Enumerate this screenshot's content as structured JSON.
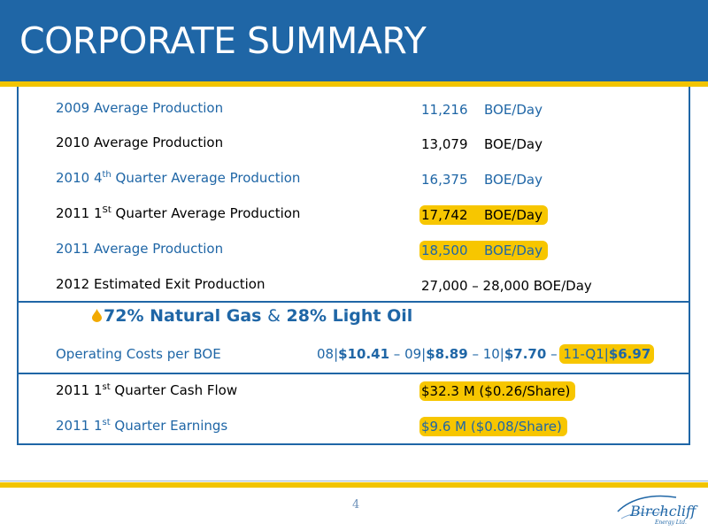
{
  "header": {
    "title": "CORPORATE SUMMARY"
  },
  "rows": [
    {
      "label": "2009 Average Production",
      "value": "11,216",
      "unit": "BOE/Day"
    },
    {
      "label": "2010 Average Production",
      "value": "13,079",
      "unit": "BOE/Day"
    },
    {
      "label_pre": "2010 4",
      "label_sup": "th",
      "label_post": " Quarter Average Production",
      "value": "16,375",
      "unit": "BOE/Day"
    },
    {
      "label_pre": "2011 1",
      "label_sup": "St",
      "label_post": " Quarter Average Production",
      "value": "17,742",
      "unit": "BOE/Day"
    },
    {
      "label": "2011 Average Production",
      "value": "18,500",
      "unit": "BOE/Day"
    },
    {
      "label": "2012 Estimated Exit Production",
      "value": "27,000 – 28,000 BOE/Day"
    }
  ],
  "mix": {
    "gas": "72% Natural Gas",
    "amp": "&",
    "oil": "28% Light Oil"
  },
  "op_costs": {
    "label": "Operating Costs per BOE",
    "p1": "08|",
    "v1": "$10.41",
    "s1": " – ",
    "p2": "09|",
    "v2": "$8.89",
    "s2": " – ",
    "p3": "10|",
    "v3": "$7.70",
    "s3": " – ",
    "p4": "11-Q1|",
    "v4": "$6.97"
  },
  "cash": {
    "cf_pre": "2011 1",
    "cf_sup": "st",
    "cf_post": " Quarter Cash Flow",
    "cf_value": "$32.3 M ($0.26/Share)",
    "er_pre": "2011 1",
    "er_sup": "st",
    "er_post": " Quarter Earnings",
    "er_value": "$9.6 M ($0.08/Share)"
  },
  "footer": {
    "page": "4",
    "logo_text": "Birchcliff",
    "logo_sub": "Energy Ltd."
  },
  "colors": {
    "brand_blue": "#1f66a6",
    "highlight": "#f7c600",
    "rule": "#f2c400"
  }
}
